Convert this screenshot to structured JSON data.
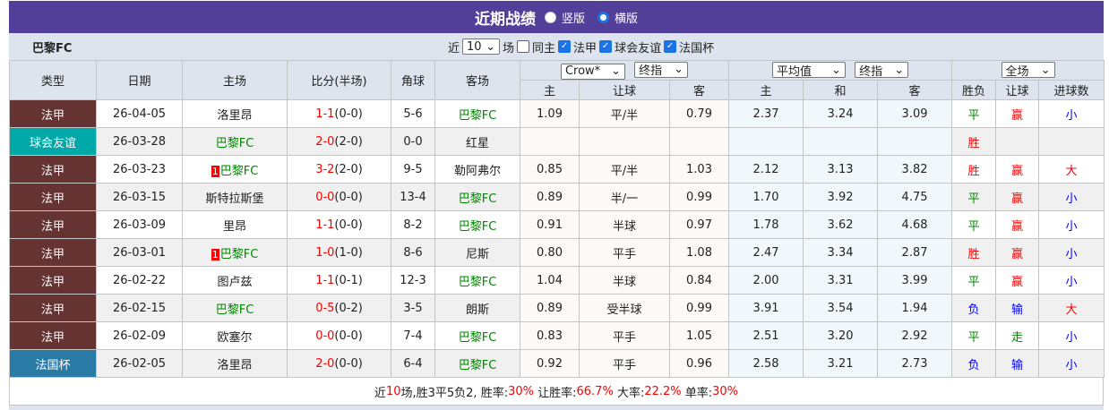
{
  "header": {
    "title": "近期战绩",
    "view_options": [
      {
        "label": "竖版",
        "selected": false
      },
      {
        "label": "横版",
        "selected": true
      }
    ]
  },
  "filters": {
    "team": "巴黎FC",
    "near_label": "近",
    "count": "10",
    "games_label": "场",
    "checkboxes": [
      {
        "label": "同主",
        "checked": false
      },
      {
        "label": "法甲",
        "checked": true
      },
      {
        "label": "球会友谊",
        "checked": true
      },
      {
        "label": "法国杯",
        "checked": true
      }
    ]
  },
  "columns": {
    "type": "类型",
    "date": "日期",
    "home": "主场",
    "score": "比分(半场)",
    "corner": "角球",
    "away": "客场",
    "ah_company": "Crow*",
    "ah_mode": "终指",
    "ah_sub": [
      "主",
      "让球",
      "客"
    ],
    "eu_company": "平均值",
    "eu_mode": "终指",
    "eu_sub": [
      "主",
      "和",
      "客"
    ],
    "period": "全场",
    "res_sub": [
      "胜负",
      "让球",
      "进球数"
    ]
  },
  "colors": {
    "法甲": "#663333",
    "球会友谊": "#00a8a8",
    "法国杯": "#2a7aa6",
    "title_bar": "#523f9a"
  },
  "rows": [
    {
      "type": "法甲",
      "date": "26-04-05",
      "home": "洛里昂",
      "home_card": "",
      "score": "1-1",
      "half": "(0-0)",
      "corner": "5-6",
      "away": "巴黎FC",
      "away_card": "",
      "ah": [
        "1.09",
        "平/半",
        "0.79"
      ],
      "eu": [
        "2.37",
        "3.24",
        "3.09"
      ],
      "wdl": "平",
      "hc": "赢",
      "ou": "小"
    },
    {
      "type": "球会友谊",
      "date": "26-03-28",
      "home": "巴黎FC",
      "home_card": "",
      "score": "2-0",
      "half": "(2-0)",
      "corner": "0-0",
      "away": "红星",
      "away_card": "",
      "ah": [
        "",
        "",
        ""
      ],
      "eu": [
        "",
        "",
        ""
      ],
      "wdl": "胜",
      "hc": "",
      "ou": ""
    },
    {
      "type": "法甲",
      "date": "26-03-23",
      "home": "巴黎FC",
      "home_card": "1",
      "score": "3-2",
      "half": "(2-0)",
      "corner": "9-5",
      "away": "勒阿弗尔",
      "away_card": "",
      "ah": [
        "0.85",
        "平/半",
        "1.03"
      ],
      "eu": [
        "2.12",
        "3.13",
        "3.82"
      ],
      "wdl": "胜",
      "hc": "赢",
      "ou": "大"
    },
    {
      "type": "法甲",
      "date": "26-03-15",
      "home": "斯特拉斯堡",
      "home_card": "",
      "score": "0-0",
      "half": "(0-0)",
      "corner": "13-4",
      "away": "巴黎FC",
      "away_card": "",
      "ah": [
        "0.89",
        "半/一",
        "0.99"
      ],
      "eu": [
        "1.70",
        "3.92",
        "4.75"
      ],
      "wdl": "平",
      "hc": "赢",
      "ou": "小"
    },
    {
      "type": "法甲",
      "date": "26-03-09",
      "home": "里昂",
      "home_card": "",
      "score": "1-1",
      "half": "(0-0)",
      "corner": "8-2",
      "away": "巴黎FC",
      "away_card": "",
      "ah": [
        "0.91",
        "半球",
        "0.97"
      ],
      "eu": [
        "1.78",
        "3.62",
        "4.68"
      ],
      "wdl": "平",
      "hc": "赢",
      "ou": "小"
    },
    {
      "type": "法甲",
      "date": "26-03-01",
      "home": "巴黎FC",
      "home_card": "1",
      "score": "1-0",
      "half": "(1-0)",
      "corner": "8-6",
      "away": "尼斯",
      "away_card": "",
      "ah": [
        "0.80",
        "平手",
        "1.08"
      ],
      "eu": [
        "2.47",
        "3.34",
        "2.87"
      ],
      "wdl": "胜",
      "hc": "赢",
      "ou": "小"
    },
    {
      "type": "法甲",
      "date": "26-02-22",
      "home": "图卢兹",
      "home_card": "",
      "score": "1-1",
      "half": "(0-1)",
      "corner": "12-3",
      "away": "巴黎FC",
      "away_card": "",
      "ah": [
        "1.04",
        "半球",
        "0.84"
      ],
      "eu": [
        "2.00",
        "3.31",
        "3.99"
      ],
      "wdl": "平",
      "hc": "赢",
      "ou": "小"
    },
    {
      "type": "法甲",
      "date": "26-02-15",
      "home": "巴黎FC",
      "home_card": "",
      "score": "0-5",
      "half": "(0-2)",
      "corner": "3-5",
      "away": "朗斯",
      "away_card": "",
      "ah": [
        "0.89",
        "受半球",
        "0.99"
      ],
      "eu": [
        "3.91",
        "3.54",
        "1.94"
      ],
      "wdl": "负",
      "hc": "输",
      "ou": "大"
    },
    {
      "type": "法甲",
      "date": "26-02-09",
      "home": "欧塞尔",
      "home_card": "",
      "score": "0-0",
      "half": "(0-0)",
      "corner": "7-4",
      "away": "巴黎FC",
      "away_card": "",
      "ah": [
        "0.83",
        "平手",
        "1.05"
      ],
      "eu": [
        "2.51",
        "3.20",
        "2.92"
      ],
      "wdl": "平",
      "hc": "走",
      "ou": "小"
    },
    {
      "type": "法国杯",
      "date": "26-02-05",
      "home": "洛里昂",
      "home_card": "",
      "score": "2-0",
      "half": "(0-0)",
      "corner": "6-4",
      "away": "巴黎FC",
      "away_card": "",
      "ah": [
        "0.92",
        "平手",
        "0.96"
      ],
      "eu": [
        "2.58",
        "3.21",
        "2.73"
      ],
      "wdl": "负",
      "hc": "输",
      "ou": "小"
    }
  ],
  "summary": {
    "p1": "近",
    "games": "10",
    "p2": "场,胜3平5负2, 胜率:",
    "win_rate": "30%",
    "p3": " 让胜率:",
    "hc_rate": "66.7%",
    "p4": " 大率:",
    "over_rate": "22.2%",
    "p5": " 单率:",
    "odd_rate": "30%"
  }
}
